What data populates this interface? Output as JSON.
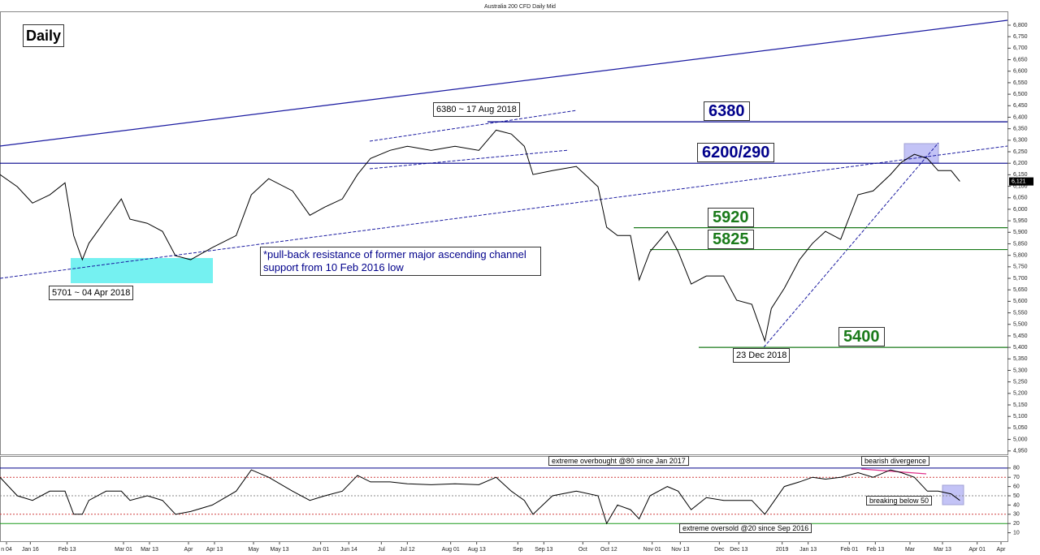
{
  "chart_data": [
    {
      "type": "line",
      "title": "Australia 200 CFD Daily Mid",
      "x": [
        1,
        9,
        16,
        24,
        31,
        35,
        39,
        42,
        50,
        57,
        61,
        69,
        76,
        82,
        89,
        99,
        110,
        117,
        125,
        136,
        144,
        151,
        159,
        166,
        172,
        181,
        189,
        200,
        211,
        222,
        230,
        237,
        243,
        247,
        256,
        267,
        277,
        281,
        286,
        292,
        296,
        301,
        309,
        314,
        320,
        327,
        335,
        341,
        348,
        354,
        357,
        363,
        370,
        376,
        382,
        389,
        397,
        404,
        412,
        417,
        423,
        429,
        434,
        440,
        444
      ],
      "series": [
        {
          "color": "#000000",
          "values": [
            6151,
            6098,
            6027,
            6063,
            6115,
            5886,
            5781,
            5852,
            5957,
            6045,
            5957,
            5939,
            5904,
            5798,
            5781,
            5834,
            5886,
            6063,
            6133,
            6080,
            5974,
            6010,
            6045,
            6151,
            6221,
            6256,
            6274,
            6256,
            6274,
            6256,
            6344,
            6327,
            6274,
            6151,
            6168,
            6186,
            6098,
            5922,
            5886,
            5886,
            5693,
            5816,
            5904,
            5816,
            5675,
            5710,
            5710,
            5605,
            5587,
            5428,
            5569,
            5657,
            5781,
            5852,
            5904,
            5869,
            6063,
            6080,
            6151,
            6204,
            6239,
            6221,
            6168,
            6168,
            6121
          ]
        }
      ],
      "last": {
        "value": 6121,
        "label": "6,121"
      },
      "xlim": [
        1,
        466
      ],
      "ylim": [
        4935,
        6860
      ],
      "yticks": [
        {
          "value": 6800,
          "label": "6,800"
        },
        {
          "value": 6750,
          "label": "6,750"
        },
        {
          "value": 6700,
          "label": "6,700"
        },
        {
          "value": 6650,
          "label": "6,650"
        },
        {
          "value": 6600,
          "label": "6,600"
        },
        {
          "value": 6550,
          "label": "6,550"
        },
        {
          "value": 6500,
          "label": "6,500"
        },
        {
          "value": 6450,
          "label": "6,450"
        },
        {
          "value": 6400,
          "label": "6,400"
        },
        {
          "value": 6350,
          "label": "6,350"
        },
        {
          "value": 6300,
          "label": "6,300"
        },
        {
          "value": 6250,
          "label": "6,250"
        },
        {
          "value": 6200,
          "label": "6,200"
        },
        {
          "value": 6150,
          "label": "6,150"
        },
        {
          "value": 6100,
          "label": "6,100"
        },
        {
          "value": 6050,
          "label": "6,050"
        },
        {
          "value": 6000,
          "label": "6,000"
        },
        {
          "value": 5950,
          "label": "5,950"
        },
        {
          "value": 5900,
          "label": "5,900"
        },
        {
          "value": 5850,
          "label": "5,850"
        },
        {
          "value": 5800,
          "label": "5,800"
        },
        {
          "value": 5750,
          "label": "5,750"
        },
        {
          "value": 5700,
          "label": "5,700"
        },
        {
          "value": 5650,
          "label": "5,650"
        },
        {
          "value": 5600,
          "label": "5,600"
        },
        {
          "value": 5550,
          "label": "5,550"
        },
        {
          "value": 5500,
          "label": "5,500"
        },
        {
          "value": 5450,
          "label": "5,450"
        },
        {
          "value": 5400,
          "label": "5,400"
        },
        {
          "value": 5350,
          "label": "5,350"
        },
        {
          "value": 5300,
          "label": "5,300"
        },
        {
          "value": 5250,
          "label": "5,250"
        },
        {
          "value": 5200,
          "label": "5,200"
        },
        {
          "value": 5150,
          "label": "5,150"
        },
        {
          "value": 5100,
          "label": "5,100"
        },
        {
          "value": 5050,
          "label": "5,050"
        },
        {
          "value": 5000,
          "label": "5,000"
        },
        {
          "value": 4950,
          "label": "4,950"
        }
      ],
      "levels": [
        {
          "label": "6380",
          "value": 6380,
          "color": "#00008b"
        },
        {
          "label": "6200/290",
          "value": 6200,
          "color": "#00008b"
        },
        {
          "label": "5920",
          "value": 5920,
          "color": "#1a7a1a"
        },
        {
          "label": "5825",
          "value": 5825,
          "color": "#1a7a1a"
        },
        {
          "label": "5400",
          "value": 5400,
          "color": "#1a7a1a"
        }
      ],
      "notes": [
        "Daily",
        "6380 ~ 17 Aug 2018",
        "5701 ~ 04 Apr 2018",
        "*pull-back resistance of former major ascending channel support from 10 Feb 2016 low",
        "23 Dec 2018"
      ]
    },
    {
      "type": "line",
      "x": [
        1,
        9,
        16,
        24,
        31,
        35,
        39,
        42,
        50,
        57,
        61,
        69,
        76,
        82,
        89,
        99,
        110,
        117,
        125,
        136,
        144,
        151,
        159,
        166,
        172,
        181,
        189,
        200,
        211,
        222,
        230,
        237,
        243,
        247,
        256,
        267,
        277,
        281,
        286,
        292,
        296,
        301,
        309,
        314,
        320,
        327,
        335,
        341,
        348,
        354,
        357,
        363,
        370,
        376,
        382,
        389,
        397,
        404,
        412,
        417,
        423,
        429,
        434,
        440,
        444
      ],
      "series": [
        {
          "color": "#000000",
          "values": [
            70,
            50,
            45,
            55,
            55,
            30,
            30,
            45,
            55,
            55,
            45,
            50,
            45,
            30,
            33,
            40,
            55,
            78,
            70,
            55,
            45,
            50,
            55,
            72,
            65,
            65,
            63,
            62,
            63,
            62,
            70,
            55,
            45,
            30,
            50,
            55,
            50,
            20,
            40,
            35,
            25,
            50,
            60,
            55,
            35,
            48,
            45,
            45,
            45,
            30,
            40,
            60,
            65,
            70,
            68,
            70,
            75,
            70,
            78,
            75,
            70,
            55,
            55,
            52,
            45
          ]
        }
      ],
      "xlim": [
        1,
        466
      ],
      "ylim": [
        0,
        93
      ],
      "yticks": [
        80,
        70,
        60,
        50,
        40,
        30,
        20,
        10
      ],
      "ref_lines": [
        {
          "value": 80,
          "color": "#00008b",
          "dash": ""
        },
        {
          "value": 70,
          "color": "#d04040",
          "dash": "2,2"
        },
        {
          "value": 50,
          "color": "#888888",
          "dash": "2,2"
        },
        {
          "value": 30,
          "color": "#d04040",
          "dash": "2,2"
        },
        {
          "value": 20,
          "color": "#1a9a1a",
          "dash": ""
        }
      ],
      "xticks": [
        {
          "value": 4,
          "label": "n 04"
        },
        {
          "value": 15,
          "label": "Jan 16"
        },
        {
          "value": 32,
          "label": "Feb 13"
        },
        {
          "value": 58,
          "label": "Mar 01"
        },
        {
          "value": 70,
          "label": "Mar 13"
        },
        {
          "value": 88,
          "label": "Apr"
        },
        {
          "value": 100,
          "label": "Apr 13"
        },
        {
          "value": 118,
          "label": "May"
        },
        {
          "value": 130,
          "label": "May 13"
        },
        {
          "value": 149,
          "label": "Jun 01"
        },
        {
          "value": 162,
          "label": "Jun 14"
        },
        {
          "value": 177,
          "label": "Jul"
        },
        {
          "value": 189,
          "label": "Jul 12"
        },
        {
          "value": 209,
          "label": "Aug 01"
        },
        {
          "value": 221,
          "label": "Aug 13"
        },
        {
          "value": 240,
          "label": "Sep"
        },
        {
          "value": 252,
          "label": "Sep 13"
        },
        {
          "value": 270,
          "label": "Oct"
        },
        {
          "value": 282,
          "label": "Oct 12"
        },
        {
          "value": 302,
          "label": "Nov 01"
        },
        {
          "value": 315,
          "label": "Nov 13"
        },
        {
          "value": 333,
          "label": "Dec"
        },
        {
          "value": 342,
          "label": "Dec 13"
        },
        {
          "value": 362,
          "label": "2019"
        },
        {
          "value": 374,
          "label": "Jan 13"
        },
        {
          "value": 393,
          "label": "Feb 01"
        },
        {
          "value": 405,
          "label": "Feb 13"
        },
        {
          "value": 421,
          "label": "Mar"
        },
        {
          "value": 436,
          "label": "Mar 13"
        },
        {
          "value": 452,
          "label": "Apr 01"
        },
        {
          "value": 463,
          "label": "Apr"
        }
      ],
      "notes": [
        "extreme overbought @80 since Jan 2017",
        "extreme oversold @20 since Sep 2016",
        "bearish divergence",
        "breaking below 50"
      ]
    }
  ]
}
